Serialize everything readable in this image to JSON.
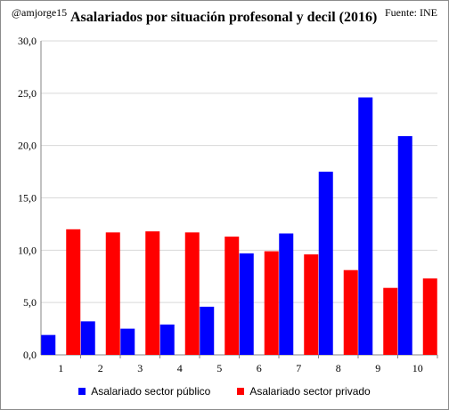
{
  "header": {
    "handle": "@amjorge15",
    "source": "Fuente: INE"
  },
  "chart_data": {
    "type": "bar",
    "title": "Asalariados por situación profesonal y decil (2016)",
    "xlabel": "",
    "ylabel": "",
    "categories": [
      "1",
      "2",
      "3",
      "4",
      "5",
      "6",
      "7",
      "8",
      "9",
      "10"
    ],
    "series": [
      {
        "name": "Asalariado sector público",
        "color": "#0000ff",
        "values": [
          1.9,
          3.2,
          2.5,
          2.9,
          4.6,
          9.7,
          11.6,
          17.5,
          24.6,
          20.9
        ]
      },
      {
        "name": "Asalariado sector privado",
        "color": "#ff0000",
        "values": [
          12.0,
          11.7,
          11.8,
          11.7,
          11.3,
          9.9,
          9.6,
          8.1,
          6.4,
          7.3
        ]
      }
    ],
    "ylim": [
      0,
      30
    ],
    "yticks": [
      "0,0",
      "5,0",
      "10,0",
      "15,0",
      "20,0",
      "25,0",
      "30,0"
    ],
    "grid": true,
    "legend_position": "bottom"
  }
}
